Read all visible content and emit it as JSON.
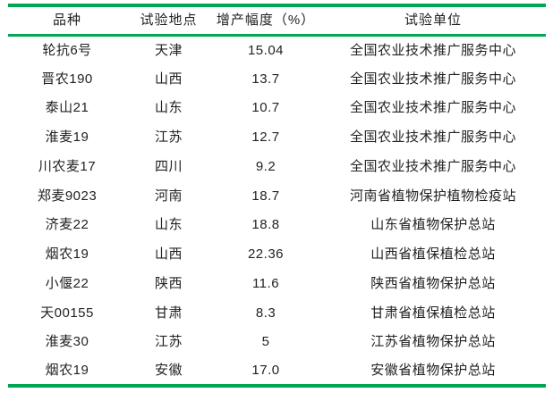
{
  "colors": {
    "rule_green": "#00a651",
    "text": "#222222",
    "background": "#ffffff"
  },
  "table": {
    "columns": [
      {
        "key": "variety",
        "label": "品种"
      },
      {
        "key": "location",
        "label": "试验地点"
      },
      {
        "key": "increase",
        "label": "增产幅度（%）"
      },
      {
        "key": "unit",
        "label": "试验单位"
      }
    ],
    "rows": [
      {
        "variety": "轮抗6号",
        "location": "天津",
        "increase": "15.04",
        "unit": "全国农业技术推广服务中心"
      },
      {
        "variety": "晋农190",
        "location": "山西",
        "increase": "13.7",
        "unit": "全国农业技术推广服务中心"
      },
      {
        "variety": "泰山21",
        "location": "山东",
        "increase": "10.7",
        "unit": "全国农业技术推广服务中心"
      },
      {
        "variety": "淮麦19",
        "location": "江苏",
        "increase": "12.7",
        "unit": "全国农业技术推广服务中心"
      },
      {
        "variety": "川农麦17",
        "location": "四川",
        "increase": "9.2",
        "unit": "全国农业技术推广服务中心"
      },
      {
        "variety": "郑麦9023",
        "location": "河南",
        "increase": "18.7",
        "unit": "河南省植物保护植物检疫站"
      },
      {
        "variety": "济麦22",
        "location": "山东",
        "increase": "18.8",
        "unit": "山东省植物保护总站"
      },
      {
        "variety": "烟农19",
        "location": "山西",
        "increase": "22.36",
        "unit": "山西省植保植检总站"
      },
      {
        "variety": "小偃22",
        "location": "陕西",
        "increase": "11.6",
        "unit": "陕西省植物保护总站"
      },
      {
        "variety": "天00155",
        "location": "甘肃",
        "increase": "8.3",
        "unit": "甘肃省植保植检总站"
      },
      {
        "variety": "淮麦30",
        "location": "江苏",
        "increase": "5",
        "unit": "江苏省植物保护总站"
      },
      {
        "variety": "烟农19",
        "location": "安徽",
        "increase": "17.0",
        "unit": "安徽省植物保护总站"
      }
    ]
  }
}
